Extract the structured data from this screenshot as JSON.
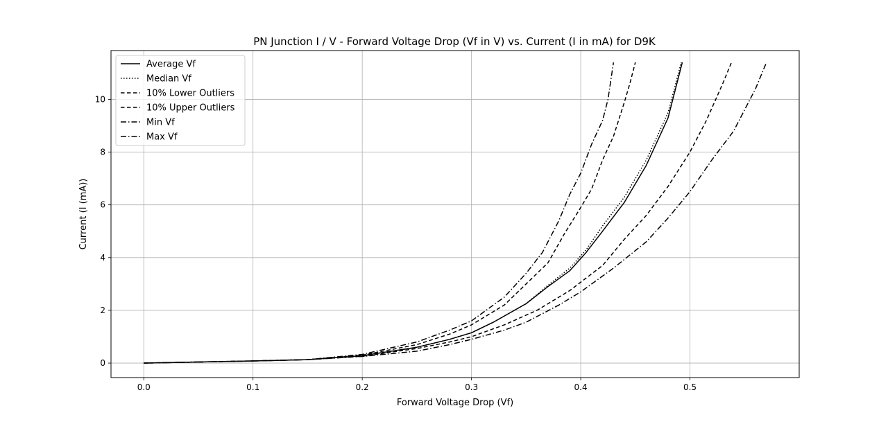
{
  "chart_data": {
    "type": "line",
    "title": "PN Junction I / V - Forward Voltage Drop (Vf in V) vs. Current (I in mA) for D9K",
    "xlabel": "Forward Voltage Drop (Vf)",
    "ylabel": "Current (I (mA))",
    "xlim": [
      -0.03,
      0.6
    ],
    "ylim": [
      -0.55,
      11.85
    ],
    "xticks": [
      0.0,
      0.1,
      0.2,
      0.3,
      0.4,
      0.5
    ],
    "yticks": [
      0,
      2,
      4,
      6,
      8,
      10
    ],
    "grid": true,
    "legend_position": "top-left",
    "series": [
      {
        "name": "Average Vf",
        "dash": "solid",
        "x": [
          0.0,
          0.05,
          0.1,
          0.15,
          0.2,
          0.25,
          0.28,
          0.3,
          0.32,
          0.35,
          0.37,
          0.39,
          0.405,
          0.42,
          0.44,
          0.46,
          0.48,
          0.493
        ],
        "y": [
          0.0,
          0.04,
          0.08,
          0.13,
          0.28,
          0.6,
          0.9,
          1.15,
          1.55,
          2.25,
          2.9,
          3.5,
          4.2,
          5.0,
          6.1,
          7.5,
          9.3,
          11.4
        ]
      },
      {
        "name": "Median Vf",
        "dash": "dotted",
        "x": [
          0.0,
          0.05,
          0.1,
          0.15,
          0.2,
          0.25,
          0.28,
          0.3,
          0.32,
          0.35,
          0.37,
          0.39,
          0.405,
          0.42,
          0.44,
          0.46,
          0.48,
          0.492
        ],
        "y": [
          0.0,
          0.04,
          0.08,
          0.13,
          0.28,
          0.6,
          0.9,
          1.15,
          1.55,
          2.25,
          2.95,
          3.6,
          4.3,
          5.2,
          6.3,
          7.7,
          9.5,
          11.4
        ]
      },
      {
        "name": "10% Lower Outliers",
        "dash": "dashed",
        "x": [
          0.0,
          0.05,
          0.1,
          0.15,
          0.2,
          0.25,
          0.28,
          0.3,
          0.33,
          0.355,
          0.37,
          0.385,
          0.4,
          0.41,
          0.42,
          0.43,
          0.44,
          0.445,
          0.45
        ],
        "y": [
          0.0,
          0.04,
          0.08,
          0.13,
          0.3,
          0.7,
          1.1,
          1.45,
          2.2,
          3.2,
          3.8,
          4.9,
          5.9,
          6.6,
          7.7,
          8.6,
          9.9,
          10.6,
          11.4
        ]
      },
      {
        "name": "10% Upper Outliers",
        "dash": "dashed",
        "x": [
          0.0,
          0.05,
          0.1,
          0.15,
          0.2,
          0.25,
          0.28,
          0.3,
          0.33,
          0.36,
          0.39,
          0.42,
          0.44,
          0.46,
          0.48,
          0.5,
          0.515,
          0.53,
          0.538
        ],
        "y": [
          0.0,
          0.04,
          0.08,
          0.13,
          0.26,
          0.55,
          0.8,
          1.0,
          1.45,
          2.0,
          2.75,
          3.7,
          4.7,
          5.6,
          6.7,
          8.0,
          9.2,
          10.6,
          11.4
        ]
      },
      {
        "name": "Min Vf",
        "dash": "dashdot",
        "x": [
          0.0,
          0.05,
          0.1,
          0.15,
          0.2,
          0.25,
          0.28,
          0.3,
          0.33,
          0.35,
          0.365,
          0.38,
          0.39,
          0.4,
          0.41,
          0.42,
          0.425,
          0.43
        ],
        "y": [
          0.0,
          0.04,
          0.08,
          0.13,
          0.33,
          0.8,
          1.25,
          1.6,
          2.5,
          3.4,
          4.2,
          5.4,
          6.4,
          7.2,
          8.3,
          9.2,
          10.0,
          11.4
        ]
      },
      {
        "name": "Max Vf",
        "dash": "dashdot",
        "x": [
          0.0,
          0.05,
          0.1,
          0.15,
          0.2,
          0.25,
          0.28,
          0.3,
          0.33,
          0.35,
          0.38,
          0.4,
          0.43,
          0.46,
          0.48,
          0.5,
          0.52,
          0.54,
          0.56,
          0.57
        ],
        "y": [
          0.0,
          0.04,
          0.08,
          0.13,
          0.25,
          0.45,
          0.7,
          0.9,
          1.25,
          1.55,
          2.2,
          2.7,
          3.6,
          4.6,
          5.5,
          6.5,
          7.7,
          8.8,
          10.4,
          11.4
        ]
      }
    ]
  }
}
